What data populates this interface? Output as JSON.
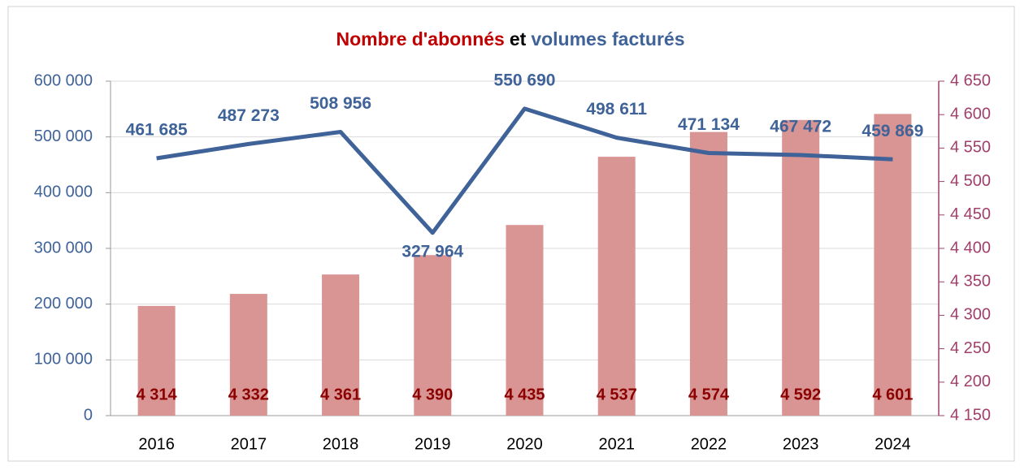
{
  "chart_data": {
    "type": "bar",
    "title_parts": [
      "Nombre d'abonnés",
      "et",
      "volumes facturés"
    ],
    "title_colors": [
      "#c00000",
      "#000000",
      "#3f6398"
    ],
    "categories": [
      "2016",
      "2017",
      "2018",
      "2019",
      "2020",
      "2021",
      "2022",
      "2023",
      "2024"
    ],
    "series": [
      {
        "type": "bar",
        "axis": "y2",
        "color": "#d99594",
        "label_color": "#8b0000",
        "values": [
          4314,
          4332,
          4361,
          4390,
          4435,
          4537,
          4574,
          4592,
          4601
        ],
        "value_labels": [
          "4 314",
          "4 332",
          "4 361",
          "4 390",
          "4 435",
          "4 537",
          "4 574",
          "4 592",
          "4 601"
        ]
      },
      {
        "type": "line",
        "axis": "y",
        "color": "#3f6398",
        "values": [
          461685,
          487273,
          508956,
          327964,
          550690,
          498611,
          471134,
          467472,
          459869
        ],
        "value_labels": [
          "461 685",
          "487 273",
          "508 956",
          "327 964",
          "550 690",
          "498 611",
          "471 134",
          "467 472",
          "459 869"
        ]
      }
    ],
    "ylim": [
      0,
      600000
    ],
    "yticks": [
      {
        "value": 0,
        "label": "0"
      },
      {
        "value": 100000,
        "label": "100 000"
      },
      {
        "value": 200000,
        "label": "200 000"
      },
      {
        "value": 300000,
        "label": "300 000"
      },
      {
        "value": 400000,
        "label": "400 000"
      },
      {
        "value": 500000,
        "label": "500 000"
      },
      {
        "value": 600000,
        "label": "600 000"
      }
    ],
    "y2lim": [
      4150,
      4650
    ],
    "y2ticks": [
      {
        "value": 4150,
        "label": "4 150"
      },
      {
        "value": 4200,
        "label": "4 200"
      },
      {
        "value": 4250,
        "label": "4 250"
      },
      {
        "value": 4300,
        "label": "4 300"
      },
      {
        "value": 4350,
        "label": "4 350"
      },
      {
        "value": 4400,
        "label": "4 400"
      },
      {
        "value": 4450,
        "label": "4 450"
      },
      {
        "value": 4500,
        "label": "4 500"
      },
      {
        "value": 4550,
        "label": "4 550"
      },
      {
        "value": 4600,
        "label": "4 600"
      },
      {
        "value": 4650,
        "label": "4 650"
      }
    ],
    "y_color": "#3f6398",
    "y2_color": "#a0406a",
    "grid": true
  }
}
